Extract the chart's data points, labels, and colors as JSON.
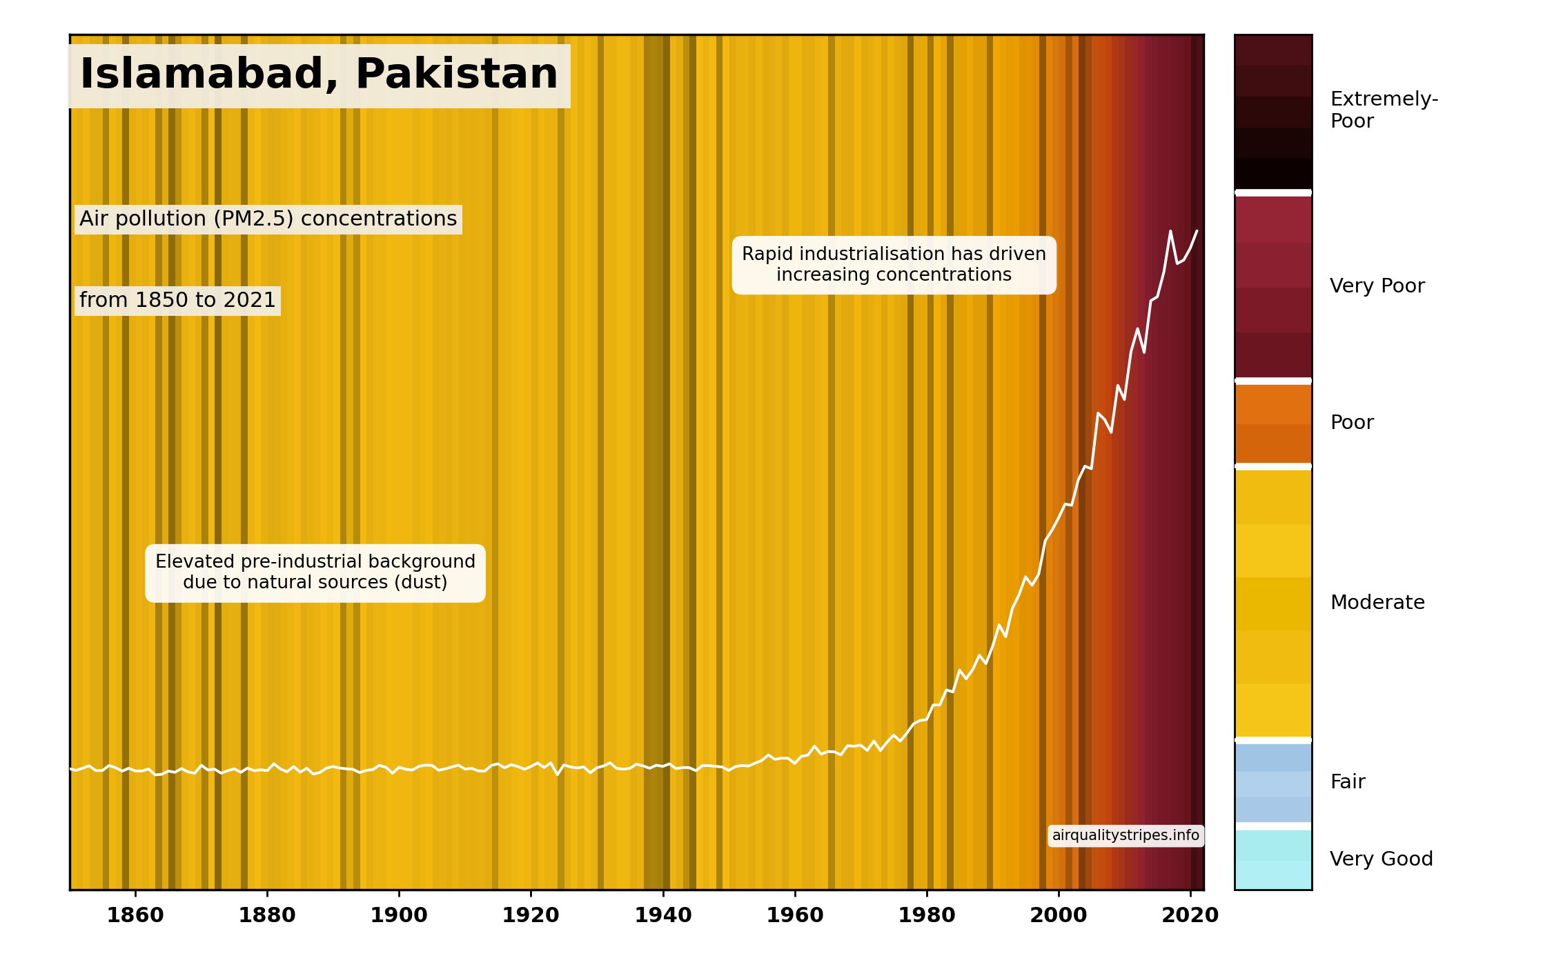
{
  "title": "Islamabad, Pakistan",
  "subtitle1": "Air pollution (PM2.5) concentrations",
  "subtitle2": "from 1850 to 2021",
  "year_start": 1850,
  "year_end": 2021,
  "annotation1": "Elevated pre-industrial background\ndue to natural sources (dust)",
  "annotation2": "Rapid industrialisation has driven\nincreasing concentrations",
  "watermark": "airqualitystripes.info",
  "x_ticks": [
    1860,
    1880,
    1900,
    1920,
    1940,
    1960,
    1980,
    2000,
    2020
  ],
  "legend_bands": [
    {
      "label": "Extremely-\nPoor",
      "colors": [
        "#0d0000",
        "#1a0505",
        "#2d0808",
        "#3d0d10",
        "#4a1015"
      ],
      "ymin": 0.82,
      "ymax": 1.0
    },
    {
      "label": "Very Poor",
      "colors": [
        "#6b1520",
        "#7d1a28",
        "#8b2030",
        "#952535"
      ],
      "ymin": 0.6,
      "ymax": 0.81
    },
    {
      "label": "Poor",
      "colors": [
        "#d4650a",
        "#e07010"
      ],
      "ymin": 0.5,
      "ymax": 0.59
    },
    {
      "label": "Moderate",
      "colors": [
        "#f5c518",
        "#f0bc10",
        "#eab800",
        "#f5c518",
        "#f0bc10"
      ],
      "ymin": 0.18,
      "ymax": 0.49
    },
    {
      "label": "Fair",
      "colors": [
        "#a8c8e8",
        "#b0d0ec",
        "#a0c4e4"
      ],
      "ymin": 0.08,
      "ymax": 0.17
    },
    {
      "label": "Very Good",
      "colors": [
        "#b0f0f5",
        "#a8ecf0"
      ],
      "ymin": 0.0,
      "ymax": 0.07
    }
  ],
  "white_dividers": [
    0.595,
    0.815,
    0.495,
    0.175
  ],
  "pm25_base_early": 18.0,
  "pm25_trend_breakpoints": [
    [
      1850,
      18.0
    ],
    [
      1950,
      19.0
    ],
    [
      1975,
      25.0
    ],
    [
      1990,
      50.0
    ],
    [
      2005,
      100.0
    ],
    [
      2015,
      140.0
    ],
    [
      2021,
      165.0
    ]
  ],
  "pm25_max_display": 200.0,
  "pm25_line_ymin": 0.06,
  "pm25_line_ymax": 0.95
}
